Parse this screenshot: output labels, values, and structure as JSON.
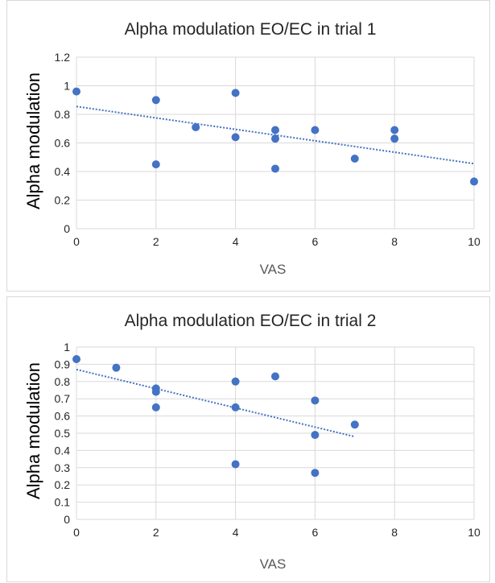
{
  "chart_data": [
    {
      "type": "scatter",
      "title": "Alpha modulation EO/EC in trial 1",
      "xlabel": "VAS",
      "ylabel": "Alpha modulation",
      "xlim": [
        0,
        10
      ],
      "ylim": [
        0,
        1.2
      ],
      "xticks": [
        0,
        2,
        4,
        6,
        8,
        10
      ],
      "xtick_labels": [
        "0",
        "2",
        "4",
        "6",
        "8",
        "10"
      ],
      "yticks": [
        0,
        0.2,
        0.4,
        0.6,
        0.8,
        1,
        1.2
      ],
      "ytick_labels": [
        "0",
        "0.2",
        "0.4",
        "0.6",
        "0.8",
        "1",
        "1.2"
      ],
      "grid": true,
      "point_color": "#4472c4",
      "points": [
        {
          "x": 0,
          "y": 0.96
        },
        {
          "x": 2,
          "y": 0.9
        },
        {
          "x": 2,
          "y": 0.45
        },
        {
          "x": 3,
          "y": 0.71
        },
        {
          "x": 4,
          "y": 0.95
        },
        {
          "x": 4,
          "y": 0.64
        },
        {
          "x": 5,
          "y": 0.69
        },
        {
          "x": 5,
          "y": 0.63
        },
        {
          "x": 5,
          "y": 0.42
        },
        {
          "x": 6,
          "y": 0.69
        },
        {
          "x": 7,
          "y": 0.49
        },
        {
          "x": 8,
          "y": 0.69
        },
        {
          "x": 8,
          "y": 0.63
        },
        {
          "x": 10,
          "y": 0.33
        }
      ],
      "trendline": {
        "x": [
          0,
          10
        ],
        "y": [
          0.855,
          0.455
        ],
        "style": "dotted",
        "color": "#4472c4"
      }
    },
    {
      "type": "scatter",
      "title": "Alpha modulation EO/EC in trial 2",
      "xlabel": "VAS",
      "ylabel": "Alpha modulation",
      "xlim": [
        0,
        10
      ],
      "ylim": [
        0,
        1
      ],
      "xticks": [
        0,
        2,
        4,
        6,
        8,
        10
      ],
      "xtick_labels": [
        "0",
        "2",
        "4",
        "6",
        "8",
        "10"
      ],
      "yticks": [
        0,
        0.1,
        0.2,
        0.3,
        0.4,
        0.5,
        0.6,
        0.7,
        0.8,
        0.9,
        1
      ],
      "ytick_labels": [
        "0",
        "0.1",
        "0.2",
        "0.3",
        "0.4",
        "0.5",
        "0.6",
        "0.7",
        "0.8",
        "0.9",
        "1"
      ],
      "grid": true,
      "point_color": "#4472c4",
      "points": [
        {
          "x": 0,
          "y": 0.93
        },
        {
          "x": 1,
          "y": 0.88
        },
        {
          "x": 2,
          "y": 0.76
        },
        {
          "x": 2,
          "y": 0.74
        },
        {
          "x": 2,
          "y": 0.65
        },
        {
          "x": 4,
          "y": 0.8
        },
        {
          "x": 4,
          "y": 0.65
        },
        {
          "x": 4,
          "y": 0.32
        },
        {
          "x": 5,
          "y": 0.83
        },
        {
          "x": 6,
          "y": 0.69
        },
        {
          "x": 6,
          "y": 0.49
        },
        {
          "x": 6,
          "y": 0.27
        },
        {
          "x": 7,
          "y": 0.55
        }
      ],
      "trendline": {
        "x": [
          0,
          7
        ],
        "y": [
          0.87,
          0.48
        ],
        "style": "dotted",
        "color": "#4472c4"
      }
    }
  ]
}
